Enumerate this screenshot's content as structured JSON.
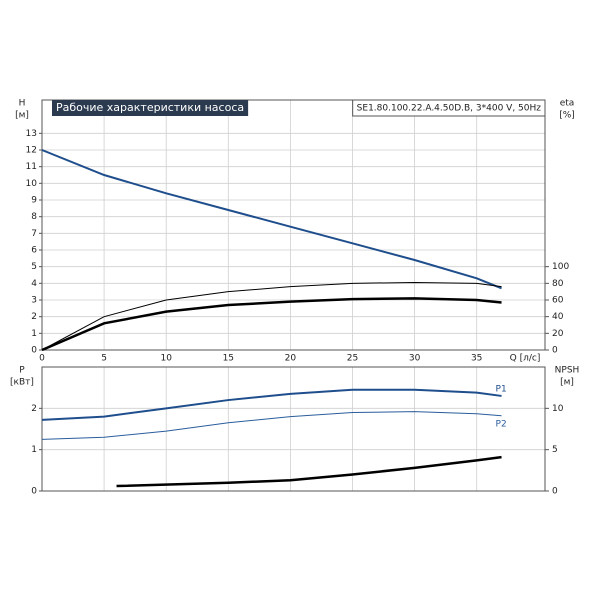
{
  "chart_data": [
    {
      "type": "line",
      "title": "Рабочие характеристики насоса",
      "subtitle": "SE1.80.100.22.A.4.50D.B, 3*400 V, 50Hz",
      "ylabel": "H",
      "yunit": "[м]",
      "y2label": "eta",
      "y2unit": "[%]",
      "xlabel": "Q [л/с]",
      "xlim": [
        0,
        40.5
      ],
      "xticks": [
        0,
        5,
        10,
        15,
        20,
        25,
        30,
        35
      ],
      "ylim": [
        0,
        15
      ],
      "yticks": [
        0,
        1,
        2,
        3,
        4,
        5,
        6,
        7,
        8,
        9,
        10,
        11,
        12,
        13
      ],
      "y2lim": [
        0,
        300
      ],
      "y2ticks": [
        0,
        20,
        40,
        60,
        80,
        100
      ],
      "grid": true,
      "series": [
        {
          "color": "#1f4e8c",
          "width": 2,
          "x": [
            0,
            5,
            10,
            15,
            20,
            25,
            30,
            35,
            37
          ],
          "values": [
            12,
            10.5,
            9.4,
            8.4,
            7.4,
            6.4,
            5.4,
            4.3,
            3.7
          ]
        },
        {
          "color": "#000000",
          "width": 1,
          "axis": "y2",
          "x": [
            0,
            5,
            10,
            15,
            20,
            25,
            30,
            35,
            37
          ],
          "values": [
            0,
            40,
            60,
            70,
            76,
            80,
            81,
            80,
            76
          ]
        },
        {
          "color": "#000000",
          "width": 2.5,
          "axis": "y2",
          "x": [
            0,
            5,
            10,
            15,
            20,
            25,
            30,
            35,
            37
          ],
          "values": [
            0,
            32,
            46,
            54,
            58,
            61,
            62,
            60,
            57
          ]
        }
      ]
    },
    {
      "type": "line",
      "ylabel": "P",
      "yunit": "[кВт]",
      "y2label": "NPSH",
      "y2unit": "[м]",
      "xlim": [
        0,
        40.5
      ],
      "xticks": [
        0,
        5,
        10,
        15,
        20,
        25,
        30,
        35
      ],
      "ylim": [
        0,
        3
      ],
      "yticks": [
        0,
        1,
        2
      ],
      "y2lim": [
        0,
        15
      ],
      "y2ticks": [
        0,
        5,
        10
      ],
      "grid": true,
      "series": [
        {
          "name": "P1",
          "color": "#1f4e8c",
          "width": 2,
          "x": [
            0,
            5,
            10,
            15,
            20,
            25,
            30,
            35,
            37
          ],
          "values": [
            1.72,
            1.8,
            2.0,
            2.2,
            2.35,
            2.45,
            2.45,
            2.38,
            2.3
          ]
        },
        {
          "name": "P2",
          "color": "#2a5d9c",
          "width": 1,
          "x": [
            0,
            5,
            10,
            15,
            20,
            25,
            30,
            35,
            37
          ],
          "values": [
            1.25,
            1.3,
            1.45,
            1.65,
            1.8,
            1.9,
            1.92,
            1.87,
            1.82
          ]
        },
        {
          "color": "#000000",
          "width": 2.5,
          "axis": "y2",
          "x": [
            6,
            15,
            20,
            25,
            30,
            35,
            37
          ],
          "values": [
            0.6,
            1.0,
            1.3,
            2.0,
            2.8,
            3.7,
            4.1
          ]
        }
      ]
    }
  ]
}
